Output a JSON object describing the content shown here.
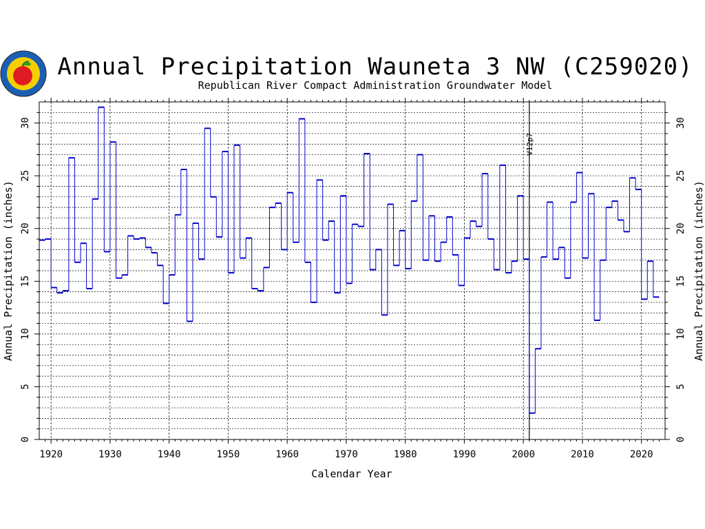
{
  "chart_data": {
    "type": "line",
    "step": true,
    "title": "Annual Precipitation Wauneta 3 NW (C259020)",
    "subtitle": "Republican River Compact Administration Groundwater Model",
    "xlabel": "Calendar Year",
    "ylabel": "Annual Precipitation (inches)",
    "ylabel_right": "Annual Precipitation (inches)",
    "xlim": [
      1918,
      2024
    ],
    "ylim": [
      0,
      32
    ],
    "xticks": [
      1920,
      1930,
      1940,
      1950,
      1960,
      1970,
      1980,
      1990,
      2000,
      2010,
      2020
    ],
    "yticks": [
      0,
      5,
      10,
      15,
      20,
      25,
      30
    ],
    "grid": true,
    "reference_line": {
      "x": 2001,
      "label": "V12p7"
    },
    "series": [
      {
        "color": "#0000cc",
        "x": [
          1918,
          1919,
          1920,
          1921,
          1922,
          1923,
          1924,
          1925,
          1926,
          1927,
          1928,
          1929,
          1930,
          1931,
          1932,
          1933,
          1934,
          1935,
          1936,
          1937,
          1938,
          1939,
          1940,
          1941,
          1942,
          1943,
          1944,
          1945,
          1946,
          1947,
          1948,
          1949,
          1950,
          1951,
          1952,
          1953,
          1954,
          1955,
          1956,
          1957,
          1958,
          1959,
          1960,
          1961,
          1962,
          1963,
          1964,
          1965,
          1966,
          1967,
          1968,
          1969,
          1970,
          1971,
          1972,
          1973,
          1974,
          1975,
          1976,
          1977,
          1978,
          1979,
          1980,
          1981,
          1982,
          1983,
          1984,
          1985,
          1986,
          1987,
          1988,
          1989,
          1990,
          1991,
          1992,
          1993,
          1994,
          1995,
          1996,
          1997,
          1998,
          1999,
          2000,
          2001,
          2002,
          2003,
          2004,
          2005,
          2006,
          2007,
          2008,
          2009,
          2010,
          2011,
          2012,
          2013,
          2014,
          2015,
          2016,
          2017,
          2018,
          2019,
          2020,
          2021,
          2022
        ],
        "y": [
          18.9,
          19.0,
          14.4,
          13.9,
          14.1,
          26.7,
          16.8,
          18.6,
          14.3,
          22.8,
          31.5,
          17.8,
          28.2,
          15.3,
          15.6,
          19.3,
          19.0,
          19.1,
          18.2,
          17.7,
          16.5,
          12.9,
          15.6,
          21.3,
          25.6,
          11.2,
          20.5,
          17.1,
          29.5,
          23.0,
          19.2,
          27.3,
          15.8,
          27.9,
          17.2,
          19.1,
          14.3,
          14.1,
          16.3,
          22.0,
          22.4,
          18.0,
          23.4,
          18.7,
          30.4,
          16.8,
          13.0,
          24.6,
          18.9,
          20.7,
          13.9,
          23.1,
          14.8,
          20.4,
          20.2,
          27.1,
          16.1,
          18.0,
          11.8,
          22.3,
          16.5,
          19.8,
          16.2,
          22.6,
          27.0,
          17.0,
          21.2,
          16.9,
          18.7,
          21.1,
          17.5,
          14.6,
          19.1,
          20.7,
          20.2,
          25.2,
          19.0,
          16.1,
          26.0,
          15.8,
          16.9,
          23.1,
          17.1,
          2.5,
          8.6,
          17.3,
          22.5,
          17.1,
          18.2,
          15.3,
          22.5,
          25.3,
          17.2,
          23.3,
          11.3,
          17.0,
          22.0,
          22.6,
          20.8,
          19.7,
          24.8,
          23.7,
          13.3,
          16.9,
          13.5
        ]
      }
    ]
  },
  "logo": {
    "name": "rrca-apple-logo"
  }
}
